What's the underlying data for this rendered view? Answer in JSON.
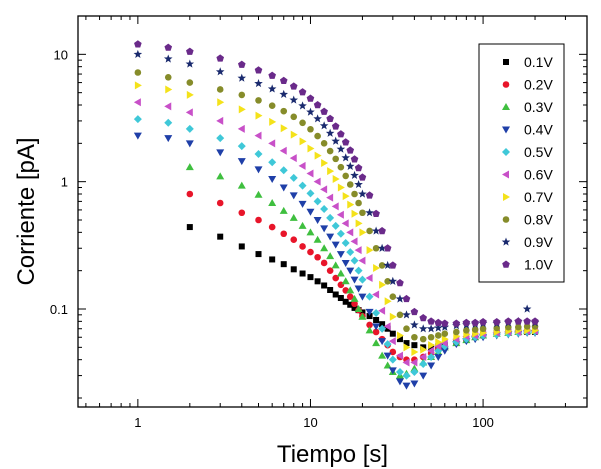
{
  "chart_data": {
    "type": "scatter",
    "xlabel": "Tiempo [s]",
    "ylabel": "Corriente [pA]",
    "xscale": "log",
    "yscale": "log",
    "xlim": [
      0.45,
      400
    ],
    "ylim": [
      0.017,
      20
    ],
    "x_ticks": [
      {
        "value": 1,
        "label": "1"
      },
      {
        "value": 10,
        "label": "10"
      },
      {
        "value": 100,
        "label": "100"
      }
    ],
    "y_ticks": [
      {
        "value": 0.1,
        "label": "0.1"
      },
      {
        "value": 1,
        "label": "1"
      },
      {
        "value": 10,
        "label": "10"
      }
    ],
    "grid": false,
    "legend_position": "top-right",
    "series": [
      {
        "name": "0.1V",
        "color": "#000000",
        "marker": "square",
        "x": [
          2,
          3,
          4,
          5,
          6,
          7,
          8,
          9,
          10,
          11,
          12,
          13,
          14,
          15,
          16,
          17,
          18,
          19,
          20,
          22,
          24,
          26,
          28,
          30,
          33,
          36,
          40,
          45,
          50,
          55,
          60,
          70,
          80,
          90,
          100,
          120,
          140,
          160,
          180,
          200
        ],
        "y": [
          0.44,
          0.37,
          0.31,
          0.27,
          0.245,
          0.225,
          0.205,
          0.19,
          0.178,
          0.165,
          0.153,
          0.141,
          0.13,
          0.122,
          0.114,
          0.108,
          0.102,
          0.098,
          0.094,
          0.088,
          0.082,
          0.076,
          0.07,
          0.064,
          0.058,
          0.054,
          0.052,
          0.05,
          0.05,
          0.051,
          0.052,
          0.055,
          0.058,
          0.061,
          0.063,
          0.065,
          0.066,
          0.066,
          0.066,
          0.066
        ]
      },
      {
        "name": "0.2V",
        "color": "#e8152a",
        "marker": "circle",
        "x": [
          2,
          3,
          4,
          5,
          6,
          7,
          8,
          9,
          10,
          11,
          12,
          13,
          14,
          15,
          16,
          17,
          18,
          19,
          20,
          22,
          24,
          26,
          28,
          30,
          33,
          36,
          40,
          45,
          50,
          55,
          60,
          70,
          80,
          90,
          100,
          120,
          140,
          160,
          180,
          200
        ],
        "y": [
          0.8,
          0.68,
          0.57,
          0.5,
          0.44,
          0.39,
          0.35,
          0.31,
          0.28,
          0.255,
          0.23,
          0.2,
          0.175,
          0.155,
          0.14,
          0.125,
          0.11,
          0.098,
          0.088,
          0.075,
          0.066,
          0.058,
          0.052,
          0.046,
          0.042,
          0.04,
          0.04,
          0.042,
          0.045,
          0.048,
          0.05,
          0.054,
          0.057,
          0.06,
          0.062,
          0.064,
          0.065,
          0.066,
          0.066,
          0.067
        ]
      },
      {
        "name": "0.3V",
        "color": "#3fbf3f",
        "marker": "triangle-up",
        "x": [
          2,
          3,
          4,
          5,
          6,
          7,
          8,
          9,
          10,
          11,
          12,
          13,
          14,
          15,
          16,
          17,
          18,
          19,
          20,
          22,
          24,
          26,
          28,
          30,
          33,
          36,
          40,
          45,
          50,
          55,
          60,
          70,
          80,
          90,
          100,
          120,
          140,
          160,
          180,
          200
        ],
        "y": [
          1.3,
          1.1,
          0.93,
          0.79,
          0.68,
          0.59,
          0.52,
          0.45,
          0.4,
          0.35,
          0.3,
          0.26,
          0.22,
          0.19,
          0.165,
          0.14,
          0.12,
          0.1,
          0.087,
          0.068,
          0.054,
          0.043,
          0.036,
          0.032,
          0.03,
          0.031,
          0.034,
          0.038,
          0.042,
          0.046,
          0.05,
          0.054,
          0.057,
          0.06,
          0.062,
          0.064,
          0.065,
          0.066,
          0.067,
          0.068
        ]
      },
      {
        "name": "0.4V",
        "color": "#1f3fa8",
        "marker": "triangle-down",
        "x": [
          1,
          1.5,
          2,
          3,
          4,
          5,
          6,
          7,
          8,
          9,
          10,
          11,
          12,
          13,
          14,
          15,
          16,
          17,
          18,
          19,
          20,
          22,
          24,
          26,
          28,
          30,
          33,
          36,
          40,
          45,
          50,
          55,
          60,
          70,
          80,
          90,
          100,
          120,
          140,
          160,
          180,
          200
        ],
        "y": [
          2.3,
          2.2,
          2.0,
          1.7,
          1.45,
          1.25,
          1.05,
          0.9,
          0.78,
          0.67,
          0.58,
          0.5,
          0.43,
          0.37,
          0.32,
          0.27,
          0.23,
          0.2,
          0.17,
          0.145,
          0.125,
          0.095,
          0.073,
          0.056,
          0.043,
          0.033,
          0.027,
          0.025,
          0.026,
          0.03,
          0.036,
          0.042,
          0.047,
          0.053,
          0.056,
          0.058,
          0.06,
          0.062,
          0.063,
          0.064,
          0.065,
          0.065
        ]
      },
      {
        "name": "0.5V",
        "color": "#3fc8d8",
        "marker": "diamond",
        "x": [
          1,
          1.5,
          2,
          3,
          4,
          5,
          6,
          7,
          8,
          9,
          10,
          11,
          12,
          13,
          14,
          15,
          16,
          17,
          18,
          19,
          20,
          22,
          24,
          26,
          28,
          30,
          33,
          36,
          40,
          45,
          50,
          55,
          60,
          70,
          80,
          90,
          100,
          120,
          140,
          160,
          180,
          200
        ],
        "y": [
          3.1,
          2.9,
          2.6,
          2.2,
          1.9,
          1.65,
          1.42,
          1.23,
          1.07,
          0.93,
          0.81,
          0.7,
          0.61,
          0.52,
          0.45,
          0.39,
          0.33,
          0.28,
          0.24,
          0.2,
          0.17,
          0.125,
          0.093,
          0.07,
          0.053,
          0.04,
          0.032,
          0.03,
          0.032,
          0.037,
          0.042,
          0.047,
          0.051,
          0.055,
          0.058,
          0.06,
          0.062,
          0.063,
          0.064,
          0.065,
          0.066,
          0.066
        ]
      },
      {
        "name": "0.6V",
        "color": "#c850c8",
        "marker": "triangle-left",
        "x": [
          1,
          1.5,
          2,
          3,
          4,
          5,
          6,
          7,
          8,
          9,
          10,
          11,
          12,
          13,
          14,
          15,
          16,
          17,
          18,
          19,
          20,
          22,
          24,
          26,
          28,
          30,
          33,
          36,
          40,
          45,
          50,
          55,
          60,
          70,
          80,
          90,
          100,
          120,
          140,
          160,
          180,
          200
        ],
        "y": [
          4.2,
          3.9,
          3.5,
          3.0,
          2.6,
          2.3,
          2.0,
          1.75,
          1.53,
          1.33,
          1.16,
          1.0,
          0.87,
          0.75,
          0.64,
          0.55,
          0.47,
          0.4,
          0.34,
          0.29,
          0.24,
          0.175,
          0.13,
          0.097,
          0.073,
          0.056,
          0.043,
          0.038,
          0.038,
          0.042,
          0.047,
          0.051,
          0.054,
          0.058,
          0.061,
          0.062,
          0.064,
          0.065,
          0.066,
          0.066,
          0.067,
          0.067
        ]
      },
      {
        "name": "0.7V",
        "color": "#f4e21a",
        "marker": "triangle-right",
        "x": [
          1,
          1.5,
          2,
          3,
          4,
          5,
          6,
          7,
          8,
          9,
          10,
          11,
          12,
          13,
          14,
          15,
          16,
          17,
          18,
          19,
          20,
          22,
          24,
          26,
          28,
          30,
          33,
          36,
          40,
          45,
          50,
          55,
          60,
          70,
          80,
          90,
          100,
          120,
          140,
          160,
          180,
          200
        ],
        "y": [
          5.7,
          5.3,
          4.8,
          4.2,
          3.7,
          3.3,
          2.95,
          2.63,
          2.34,
          2.07,
          1.82,
          1.6,
          1.4,
          1.21,
          1.05,
          0.9,
          0.77,
          0.66,
          0.56,
          0.47,
          0.4,
          0.29,
          0.21,
          0.155,
          0.115,
          0.087,
          0.062,
          0.05,
          0.046,
          0.048,
          0.052,
          0.055,
          0.058,
          0.061,
          0.063,
          0.064,
          0.065,
          0.066,
          0.067,
          0.068,
          0.068,
          0.068
        ]
      },
      {
        "name": "0.8V",
        "color": "#868c2a",
        "marker": "circle",
        "x": [
          1,
          1.5,
          2,
          3,
          4,
          5,
          6,
          7,
          8,
          9,
          10,
          11,
          12,
          13,
          14,
          15,
          16,
          17,
          18,
          19,
          20,
          22,
          24,
          26,
          28,
          30,
          33,
          36,
          40,
          45,
          50,
          55,
          60,
          70,
          80,
          90,
          100,
          120,
          140,
          160,
          180,
          200
        ],
        "y": [
          7.2,
          6.6,
          6.0,
          5.3,
          4.8,
          4.35,
          3.95,
          3.58,
          3.23,
          2.9,
          2.58,
          2.28,
          2.0,
          1.74,
          1.51,
          1.3,
          1.11,
          0.95,
          0.8,
          0.68,
          0.57,
          0.41,
          0.3,
          0.22,
          0.165,
          0.125,
          0.09,
          0.07,
          0.06,
          0.058,
          0.06,
          0.062,
          0.064,
          0.066,
          0.068,
          0.069,
          0.07,
          0.071,
          0.072,
          0.072,
          0.073,
          0.073
        ]
      },
      {
        "name": "0.9V",
        "color": "#1a2a6e",
        "marker": "star",
        "x": [
          1,
          1.5,
          2,
          3,
          4,
          5,
          6,
          7,
          8,
          9,
          10,
          11,
          12,
          13,
          14,
          15,
          16,
          17,
          18,
          19,
          20,
          22,
          24,
          26,
          28,
          30,
          33,
          36,
          40,
          45,
          50,
          55,
          60,
          70,
          80,
          90,
          100,
          120,
          140,
          160,
          180,
          200
        ],
        "y": [
          10.0,
          9.2,
          8.4,
          7.3,
          6.5,
          5.9,
          5.35,
          4.85,
          4.38,
          3.94,
          3.52,
          3.12,
          2.75,
          2.4,
          2.08,
          1.8,
          1.54,
          1.32,
          1.12,
          0.95,
          0.8,
          0.57,
          0.41,
          0.3,
          0.22,
          0.165,
          0.12,
          0.09,
          0.075,
          0.07,
          0.07,
          0.071,
          0.072,
          0.074,
          0.075,
          0.076,
          0.077,
          0.077,
          0.078,
          0.08,
          0.1,
          0.078
        ]
      },
      {
        "name": "1.0V",
        "color": "#6a2a8a",
        "marker": "pentagon",
        "x": [
          1,
          1.5,
          2,
          3,
          4,
          5,
          6,
          7,
          8,
          9,
          10,
          11,
          12,
          13,
          14,
          15,
          16,
          17,
          18,
          19,
          20,
          22,
          24,
          26,
          28,
          30,
          33,
          36,
          40,
          45,
          50,
          55,
          60,
          70,
          80,
          90,
          100,
          120,
          140,
          160,
          180,
          200
        ],
        "y": [
          12.0,
          11.3,
          10.5,
          9.3,
          8.3,
          7.5,
          6.8,
          6.2,
          5.6,
          5.05,
          4.5,
          4.0,
          3.55,
          3.12,
          2.72,
          2.36,
          2.04,
          1.76,
          1.5,
          1.28,
          1.08,
          0.78,
          0.56,
          0.41,
          0.3,
          0.22,
          0.16,
          0.12,
          0.095,
          0.085,
          0.08,
          0.078,
          0.077,
          0.077,
          0.078,
          0.078,
          0.079,
          0.079,
          0.08,
          0.08,
          0.08,
          0.08
        ]
      }
    ]
  }
}
